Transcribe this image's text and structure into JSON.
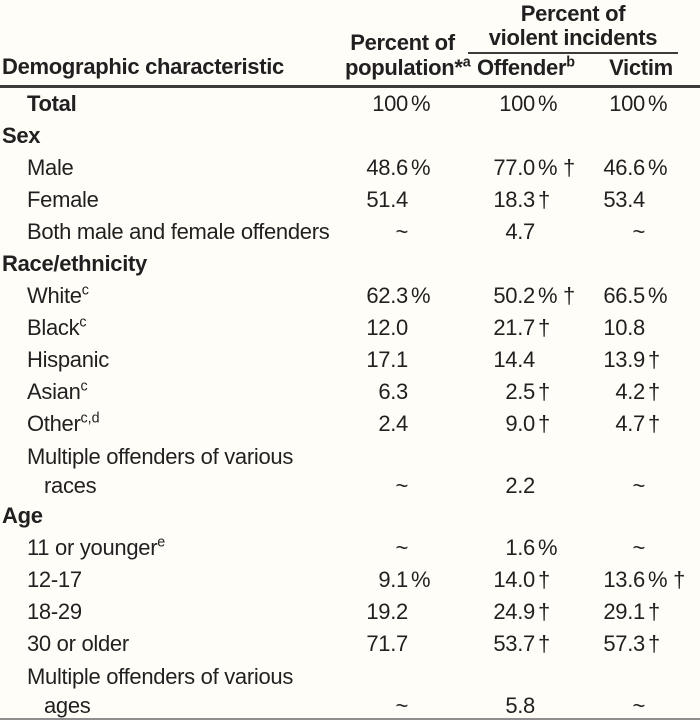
{
  "colors": {
    "background": "#fffdf8",
    "text": "#231f20",
    "rule_heavy": "#3b3b3b",
    "rule_bottom": "#8e8e8e"
  },
  "symbols": {
    "not_applicable": "~",
    "significance_marker": "†"
  },
  "header": {
    "demographic": "Demographic characteristic",
    "population_line1": "Percent of",
    "population_line2": "population*",
    "population_sup": "a",
    "incidents_line1": "Percent of",
    "incidents_line2": "violent incidents",
    "offender_label": "Offender",
    "offender_sup": "b",
    "victim_label": "Victim"
  },
  "rows": [
    {
      "kind": "total",
      "label": "Total",
      "pop_n": "100",
      "pop_s": "%",
      "off_n": "100",
      "off_s": "%",
      "vic_n": "100",
      "vic_s": "%"
    },
    {
      "kind": "section",
      "label": "Sex"
    },
    {
      "kind": "data",
      "label": "Male",
      "pop_n": "48.6",
      "pop_s": "%",
      "off_n": "77.0",
      "off_s": "% †",
      "vic_n": "46.6",
      "vic_s": "%"
    },
    {
      "kind": "data",
      "label": "Female",
      "pop_n": "51.4",
      "pop_s": "",
      "off_n": "18.3",
      "off_s": "†",
      "vic_n": "53.4",
      "vic_s": ""
    },
    {
      "kind": "data",
      "label": "Both male and female offenders",
      "pop_n": "~",
      "pop_s": "",
      "off_n": "4.7",
      "off_s": "",
      "vic_n": "~",
      "vic_s": ""
    },
    {
      "kind": "section",
      "label": "Race/ethnicity"
    },
    {
      "kind": "data",
      "label": "White",
      "sup": "c",
      "pop_n": "62.3",
      "pop_s": "%",
      "off_n": "50.2",
      "off_s": "% †",
      "vic_n": "66.5",
      "vic_s": "%"
    },
    {
      "kind": "data",
      "label": "Black",
      "sup": "c",
      "pop_n": "12.0",
      "pop_s": "",
      "off_n": "21.7",
      "off_s": "†",
      "vic_n": "10.8",
      "vic_s": ""
    },
    {
      "kind": "data",
      "label": "Hispanic",
      "pop_n": "17.1",
      "pop_s": "",
      "off_n": "14.4",
      "off_s": "",
      "vic_n": "13.9",
      "vic_s": "†"
    },
    {
      "kind": "data",
      "label": "Asian",
      "sup": "c",
      "pop_n": "6.3",
      "pop_s": "",
      "off_n": "2.5",
      "off_s": "†",
      "vic_n": "4.2",
      "vic_s": "†"
    },
    {
      "kind": "data",
      "label": "Other",
      "sup": "c,d",
      "pop_n": "2.4",
      "pop_s": "",
      "off_n": "9.0",
      "off_s": "†",
      "vic_n": "4.7",
      "vic_s": "†"
    },
    {
      "kind": "data",
      "label": "Multiple offenders of various",
      "label2": "races",
      "pop_n": "~",
      "pop_s": "",
      "off_n": "2.2",
      "off_s": "",
      "vic_n": "~",
      "vic_s": ""
    },
    {
      "kind": "section",
      "label": "Age"
    },
    {
      "kind": "data",
      "label": "11 or younger",
      "sup": "e",
      "pop_n": "~",
      "pop_s": "",
      "off_n": "1.6",
      "off_s": "%",
      "vic_n": "~",
      "vic_s": ""
    },
    {
      "kind": "data",
      "label": "12-17",
      "pop_n": "9.1",
      "pop_s": "%",
      "off_n": "14.0",
      "off_s": "†",
      "vic_n": "13.6",
      "vic_s": "% †"
    },
    {
      "kind": "data",
      "label": "18-29",
      "pop_n": "19.2",
      "pop_s": "",
      "off_n": "24.9",
      "off_s": "†",
      "vic_n": "29.1",
      "vic_s": "†"
    },
    {
      "kind": "data",
      "label": "30 or older",
      "pop_n": "71.7",
      "pop_s": "",
      "off_n": "53.7",
      "off_s": "†",
      "vic_n": "57.3",
      "vic_s": "†"
    },
    {
      "kind": "data",
      "label": "Multiple offenders of various",
      "label2": "ages",
      "pop_n": "~",
      "pop_s": "",
      "off_n": "5.8",
      "off_s": "",
      "vic_n": "~",
      "vic_s": ""
    }
  ]
}
